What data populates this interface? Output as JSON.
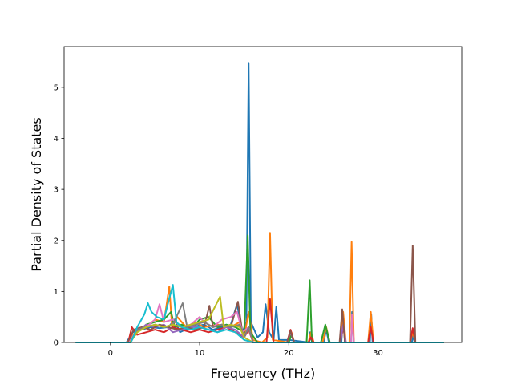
{
  "chart_data": {
    "type": "line",
    "title": "",
    "xlabel": "Frequency (THz)",
    "ylabel": "Partial Density of States",
    "xlim": [
      -5.2,
      39.4
    ],
    "ylim": [
      0,
      5.8
    ],
    "xticks": [
      0,
      10,
      20,
      30
    ],
    "yticks": [
      0,
      1,
      2,
      3,
      4,
      5
    ],
    "grid": false,
    "legend": "none",
    "colors": [
      "#1f77b4",
      "#ff7f0e",
      "#2ca02c",
      "#d62728",
      "#9467bd",
      "#8c564b",
      "#e377c2",
      "#7f7f7f",
      "#bcbd22",
      "#17becf"
    ],
    "series": [
      {
        "color": "#1f77b4",
        "points": [
          [
            -3.9,
            0
          ],
          [
            1.8,
            0
          ],
          [
            2.5,
            0.2
          ],
          [
            3.5,
            0.25
          ],
          [
            4.5,
            0.3
          ],
          [
            5.5,
            0.28
          ],
          [
            6.5,
            0.3
          ],
          [
            7.2,
            0.45
          ],
          [
            7.8,
            0.2
          ],
          [
            9.0,
            0.3
          ],
          [
            10.5,
            0.35
          ],
          [
            11.5,
            0.25
          ],
          [
            12.5,
            0.3
          ],
          [
            13.5,
            0.35
          ],
          [
            14.2,
            0.75
          ],
          [
            14.8,
            0.2
          ],
          [
            15.25,
            0.4
          ],
          [
            15.5,
            5.48
          ],
          [
            15.75,
            0.4
          ],
          [
            16.5,
            0.1
          ],
          [
            17.1,
            0.2
          ],
          [
            17.4,
            0.75
          ],
          [
            17.8,
            0.2
          ],
          [
            18.3,
            0.05
          ],
          [
            18.6,
            0.7
          ],
          [
            18.9,
            0.05
          ],
          [
            20.0,
            0.05
          ],
          [
            22.3,
            0
          ],
          [
            22.4,
            0.2
          ],
          [
            22.6,
            0
          ],
          [
            23.9,
            0
          ],
          [
            24.2,
            0.25
          ],
          [
            24.5,
            0
          ],
          [
            25.9,
            0
          ],
          [
            26.1,
            0.5
          ],
          [
            26.3,
            0
          ],
          [
            27.0,
            0
          ],
          [
            27.1,
            0.6
          ],
          [
            27.3,
            0
          ],
          [
            29.1,
            0
          ],
          [
            29.25,
            0.55
          ],
          [
            29.4,
            0
          ],
          [
            33.8,
            0
          ],
          [
            33.95,
            0.15
          ],
          [
            34.1,
            0
          ],
          [
            37.4,
            0
          ]
        ]
      },
      {
        "color": "#ff7f0e",
        "points": [
          [
            -3.9,
            0
          ],
          [
            1.9,
            0
          ],
          [
            3.0,
            0.25
          ],
          [
            4.0,
            0.3
          ],
          [
            5.0,
            0.45
          ],
          [
            6.0,
            0.4
          ],
          [
            6.6,
            1.1
          ],
          [
            6.9,
            0.3
          ],
          [
            7.5,
            0.5
          ],
          [
            8.5,
            0.3
          ],
          [
            9.5,
            0.4
          ],
          [
            10.5,
            0.3
          ],
          [
            12.0,
            0.35
          ],
          [
            13.5,
            0.3
          ],
          [
            14.5,
            0.4
          ],
          [
            15.0,
            0.1
          ],
          [
            15.5,
            0.6
          ],
          [
            16.0,
            0.05
          ],
          [
            17.0,
            0
          ],
          [
            17.6,
            0.1
          ],
          [
            17.9,
            2.15
          ],
          [
            18.2,
            0.05
          ],
          [
            20.0,
            0
          ],
          [
            20.3,
            0.2
          ],
          [
            20.6,
            0
          ],
          [
            22.2,
            0
          ],
          [
            22.5,
            0.2
          ],
          [
            22.8,
            0
          ],
          [
            23.8,
            0
          ],
          [
            24.2,
            0.3
          ],
          [
            24.6,
            0
          ],
          [
            25.8,
            0
          ],
          [
            26.1,
            0.6
          ],
          [
            26.4,
            0
          ],
          [
            26.8,
            0
          ],
          [
            27.05,
            1.97
          ],
          [
            27.3,
            0
          ],
          [
            28.9,
            0
          ],
          [
            29.2,
            0.6
          ],
          [
            29.5,
            0
          ],
          [
            33.6,
            0
          ],
          [
            33.9,
            0.2
          ],
          [
            34.2,
            0
          ],
          [
            37.4,
            0
          ]
        ]
      },
      {
        "color": "#2ca02c",
        "points": [
          [
            -3.9,
            0
          ],
          [
            2.2,
            0
          ],
          [
            3.0,
            0.2
          ],
          [
            4.0,
            0.35
          ],
          [
            5.0,
            0.4
          ],
          [
            6.0,
            0.45
          ],
          [
            6.8,
            0.6
          ],
          [
            7.2,
            0.3
          ],
          [
            8.0,
            0.35
          ],
          [
            9.0,
            0.25
          ],
          [
            10.0,
            0.45
          ],
          [
            11.0,
            0.5
          ],
          [
            12.0,
            0.3
          ],
          [
            13.0,
            0.35
          ],
          [
            14.0,
            0.3
          ],
          [
            15.0,
            0.2
          ],
          [
            15.4,
            2.1
          ],
          [
            15.7,
            0.2
          ],
          [
            16.5,
            0
          ],
          [
            20.0,
            0
          ],
          [
            20.3,
            0.15
          ],
          [
            20.6,
            0
          ],
          [
            22.0,
            0
          ],
          [
            22.35,
            1.22
          ],
          [
            22.6,
            0
          ],
          [
            23.6,
            0
          ],
          [
            24.1,
            0.35
          ],
          [
            24.6,
            0
          ],
          [
            37.4,
            0
          ]
        ]
      },
      {
        "color": "#d62728",
        "points": [
          [
            -3.9,
            0
          ],
          [
            2.0,
            0
          ],
          [
            2.4,
            0.3
          ],
          [
            3.0,
            0.15
          ],
          [
            4.0,
            0.2
          ],
          [
            5.0,
            0.25
          ],
          [
            6.0,
            0.2
          ],
          [
            7.0,
            0.3
          ],
          [
            8.0,
            0.25
          ],
          [
            9.0,
            0.2
          ],
          [
            10.0,
            0.25
          ],
          [
            11.0,
            0.2
          ],
          [
            12.0,
            0.25
          ],
          [
            13.0,
            0.3
          ],
          [
            14.0,
            0.2
          ],
          [
            15.0,
            0.1
          ],
          [
            15.5,
            0.25
          ],
          [
            16.0,
            0
          ],
          [
            17.5,
            0
          ],
          [
            17.9,
            0.85
          ],
          [
            18.3,
            0
          ],
          [
            19.8,
            0
          ],
          [
            20.2,
            0.25
          ],
          [
            20.6,
            0
          ],
          [
            22.2,
            0
          ],
          [
            22.5,
            0.1
          ],
          [
            22.8,
            0
          ],
          [
            25.8,
            0
          ],
          [
            26.1,
            0.3
          ],
          [
            26.4,
            0
          ],
          [
            28.9,
            0
          ],
          [
            29.2,
            0.3
          ],
          [
            29.5,
            0
          ],
          [
            33.6,
            0
          ],
          [
            33.9,
            0.28
          ],
          [
            34.2,
            0
          ],
          [
            37.4,
            0
          ]
        ]
      },
      {
        "color": "#9467bd",
        "points": [
          [
            -3.9,
            0
          ],
          [
            2.1,
            0
          ],
          [
            3.0,
            0.2
          ],
          [
            4.0,
            0.35
          ],
          [
            5.0,
            0.3
          ],
          [
            6.0,
            0.35
          ],
          [
            7.0,
            0.2
          ],
          [
            8.0,
            0.25
          ],
          [
            9.0,
            0.3
          ],
          [
            10.0,
            0.3
          ],
          [
            11.0,
            0.25
          ],
          [
            12.0,
            0.2
          ],
          [
            13.0,
            0.3
          ],
          [
            14.0,
            0.25
          ],
          [
            15.0,
            0.1
          ],
          [
            15.5,
            0.3
          ],
          [
            16.0,
            0
          ],
          [
            19.8,
            0
          ],
          [
            20.2,
            0.2
          ],
          [
            20.6,
            0
          ],
          [
            25.8,
            0
          ],
          [
            26.1,
            0.35
          ],
          [
            26.4,
            0
          ],
          [
            37.4,
            0
          ]
        ]
      },
      {
        "color": "#8c564b",
        "points": [
          [
            -3.9,
            0
          ],
          [
            2.0,
            0
          ],
          [
            2.6,
            0.25
          ],
          [
            3.5,
            0.3
          ],
          [
            4.5,
            0.25
          ],
          [
            5.5,
            0.35
          ],
          [
            6.5,
            0.3
          ],
          [
            7.5,
            0.25
          ],
          [
            8.5,
            0.3
          ],
          [
            9.5,
            0.25
          ],
          [
            10.5,
            0.3
          ],
          [
            11.1,
            0.72
          ],
          [
            11.5,
            0.3
          ],
          [
            12.5,
            0.35
          ],
          [
            13.5,
            0.3
          ],
          [
            14.3,
            0.8
          ],
          [
            14.8,
            0.2
          ],
          [
            15.5,
            0.3
          ],
          [
            16.0,
            0
          ],
          [
            19.8,
            0
          ],
          [
            20.2,
            0.22
          ],
          [
            20.6,
            0
          ],
          [
            25.7,
            0
          ],
          [
            26.0,
            0.65
          ],
          [
            26.3,
            0
          ],
          [
            33.6,
            0
          ],
          [
            33.9,
            1.9
          ],
          [
            34.2,
            0
          ],
          [
            37.4,
            0
          ]
        ]
      },
      {
        "color": "#e377c2",
        "points": [
          [
            -3.9,
            0
          ],
          [
            2.1,
            0
          ],
          [
            3.0,
            0.25
          ],
          [
            4.0,
            0.3
          ],
          [
            5.0,
            0.45
          ],
          [
            5.5,
            0.75
          ],
          [
            6.0,
            0.4
          ],
          [
            7.0,
            0.45
          ],
          [
            8.0,
            0.3
          ],
          [
            9.0,
            0.35
          ],
          [
            10.0,
            0.5
          ],
          [
            10.5,
            0.4
          ],
          [
            11.5,
            0.3
          ],
          [
            12.5,
            0.45
          ],
          [
            13.5,
            0.5
          ],
          [
            14.2,
            0.6
          ],
          [
            14.8,
            0.2
          ],
          [
            15.5,
            0.3
          ],
          [
            16.0,
            0
          ],
          [
            27.0,
            0
          ],
          [
            27.1,
            0.55
          ],
          [
            27.3,
            0
          ],
          [
            37.4,
            0
          ]
        ]
      },
      {
        "color": "#7f7f7f",
        "points": [
          [
            -3.9,
            0
          ],
          [
            2.2,
            0
          ],
          [
            3.0,
            0.25
          ],
          [
            4.0,
            0.3
          ],
          [
            5.0,
            0.35
          ],
          [
            6.0,
            0.3
          ],
          [
            7.0,
            0.35
          ],
          [
            8.1,
            0.77
          ],
          [
            8.6,
            0.3
          ],
          [
            9.5,
            0.35
          ],
          [
            10.5,
            0.4
          ],
          [
            11.5,
            0.3
          ],
          [
            12.5,
            0.35
          ],
          [
            13.5,
            0.3
          ],
          [
            14.5,
            0.35
          ],
          [
            15.0,
            0.1
          ],
          [
            15.5,
            0.3
          ],
          [
            16.0,
            0
          ],
          [
            37.4,
            0
          ]
        ]
      },
      {
        "color": "#bcbd22",
        "points": [
          [
            -3.9,
            0
          ],
          [
            2.2,
            0
          ],
          [
            3.0,
            0.2
          ],
          [
            4.0,
            0.3
          ],
          [
            5.0,
            0.35
          ],
          [
            6.0,
            0.3
          ],
          [
            7.0,
            0.35
          ],
          [
            8.0,
            0.3
          ],
          [
            9.0,
            0.35
          ],
          [
            10.0,
            0.4
          ],
          [
            11.0,
            0.45
          ],
          [
            12.3,
            0.9
          ],
          [
            12.7,
            0.3
          ],
          [
            13.5,
            0.35
          ],
          [
            14.5,
            0.3
          ],
          [
            15.0,
            0.1
          ],
          [
            16.0,
            0
          ],
          [
            37.4,
            0
          ]
        ]
      },
      {
        "color": "#17becf",
        "points": [
          [
            -3.9,
            0
          ],
          [
            2.3,
            0
          ],
          [
            3.0,
            0.3
          ],
          [
            3.8,
            0.55
          ],
          [
            4.2,
            0.77
          ],
          [
            4.6,
            0.6
          ],
          [
            5.2,
            0.5
          ],
          [
            6.0,
            0.45
          ],
          [
            6.5,
            0.8
          ],
          [
            7.0,
            1.13
          ],
          [
            7.4,
            0.4
          ],
          [
            8.0,
            0.3
          ],
          [
            9.0,
            0.25
          ],
          [
            10.0,
            0.3
          ],
          [
            11.0,
            0.25
          ],
          [
            12.0,
            0.2
          ],
          [
            13.0,
            0.25
          ],
          [
            14.0,
            0.2
          ],
          [
            15.0,
            0.05
          ],
          [
            16.0,
            0
          ],
          [
            37.4,
            0
          ]
        ]
      }
    ]
  }
}
